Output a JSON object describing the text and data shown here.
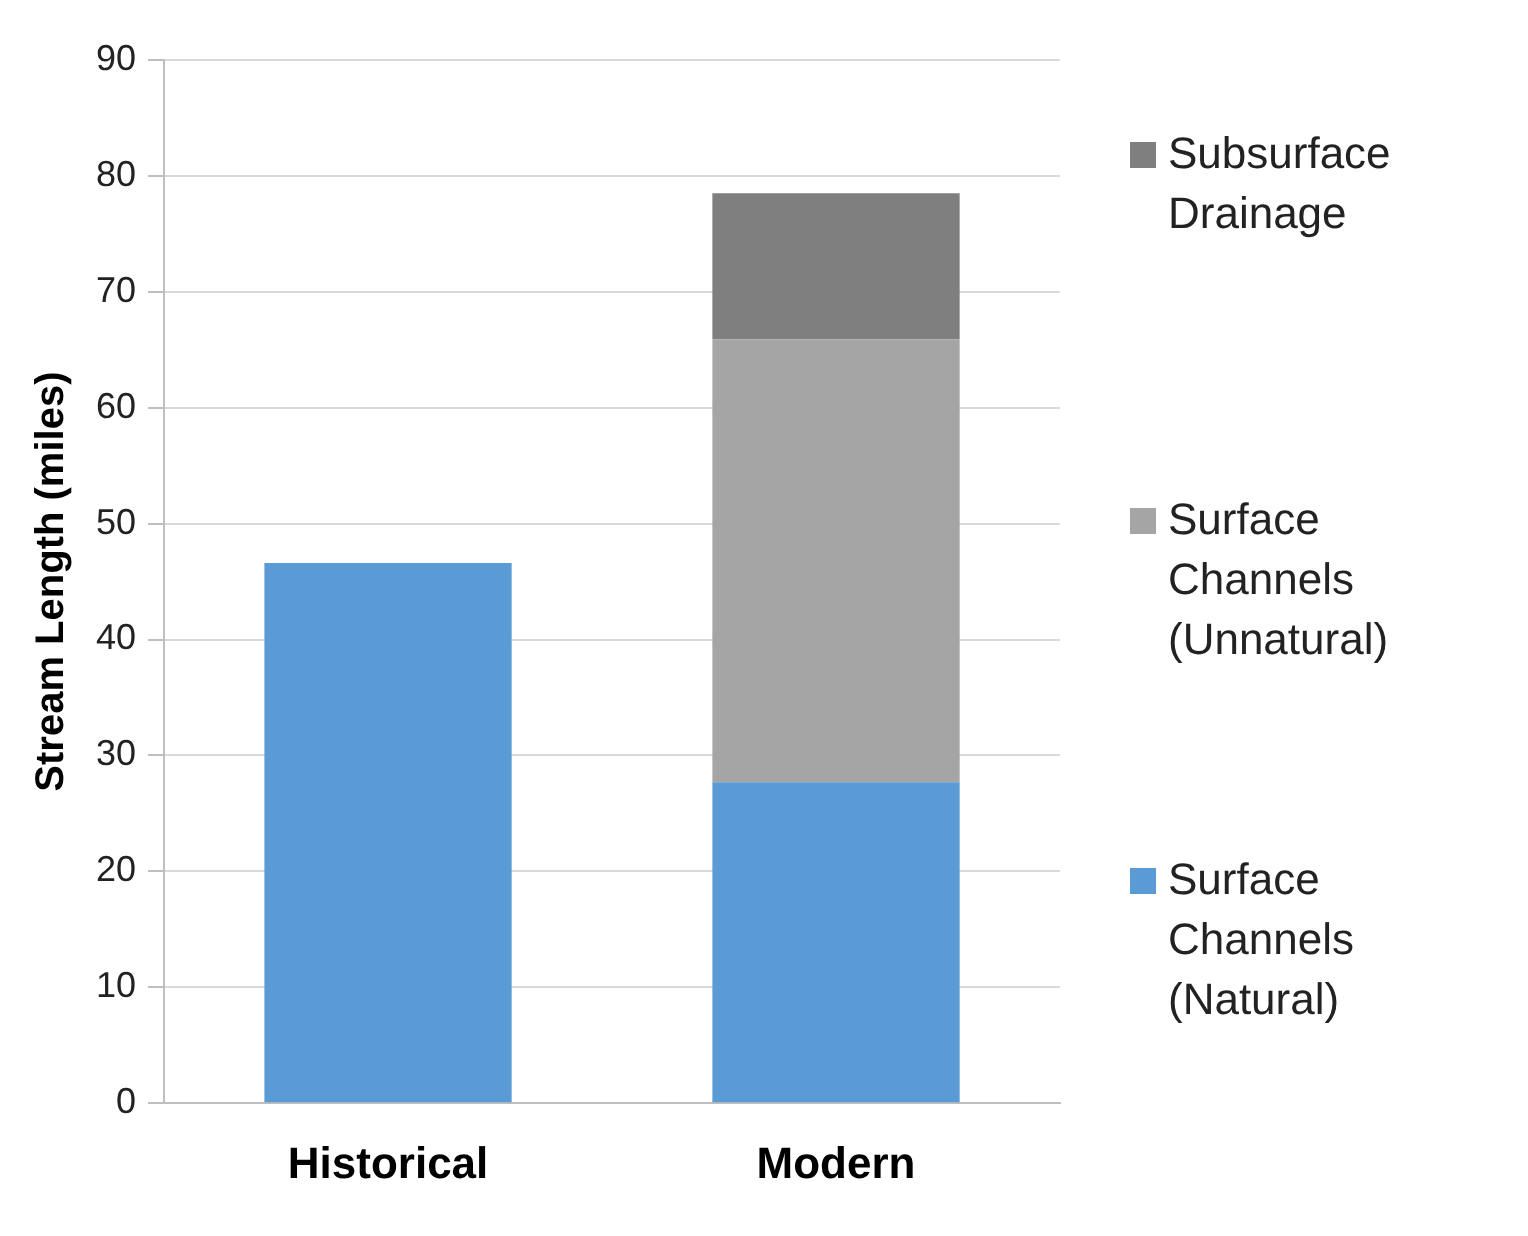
{
  "chart_data": {
    "type": "bar",
    "ylabel": "Stream Length (miles)",
    "categories": [
      "Historical",
      "Modern"
    ],
    "stacked": true,
    "series": [
      {
        "name": "Surface Channels (Natural)",
        "color": "#5b9bd5",
        "values": [
          46.6,
          27.7
        ]
      },
      {
        "name": "Surface Channels (Unnatural)",
        "color": "#a5a5a5",
        "values": [
          null,
          38.2
        ]
      },
      {
        "name": "Subsurface Drainage",
        "color": "#7f7f7f",
        "values": [
          null,
          12.6
        ]
      }
    ],
    "ylim": [
      0,
      90
    ],
    "yticks": [
      0,
      10,
      20,
      30,
      40,
      50,
      60,
      70,
      80,
      90
    ],
    "grid": "y",
    "legend": "right"
  }
}
